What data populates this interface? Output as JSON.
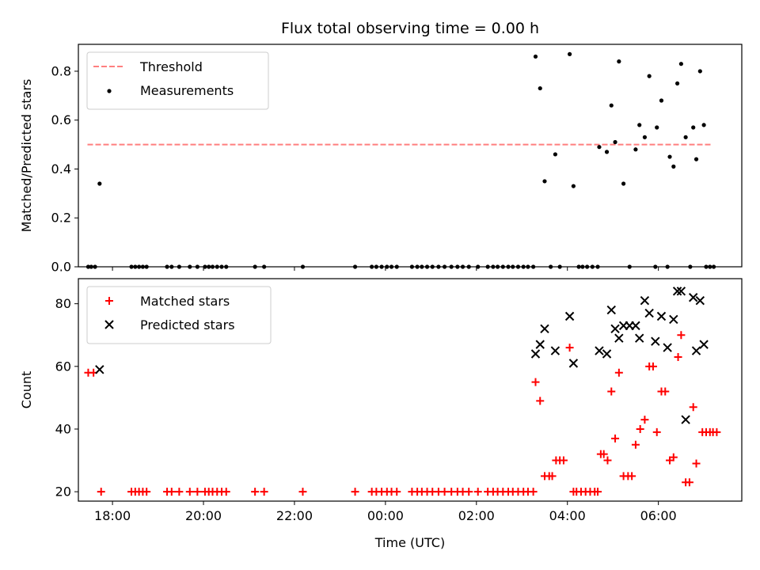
{
  "title": "Flux total observing time = 0.00 h",
  "chart_data": [
    {
      "type": "scatter",
      "ylabel": "Matched/Predicted stars",
      "xlabel": "",
      "xlim": [
        "17:15",
        "07:50"
      ],
      "ylim": [
        0,
        0.91
      ],
      "grid": false,
      "legend": "top-left",
      "yticks": [
        0.0,
        0.2,
        0.4,
        0.6,
        0.8
      ],
      "ytick_labels": [
        "0.0",
        "0.2",
        "0.4",
        "0.6",
        "0.8"
      ],
      "threshold": {
        "name": "Threshold",
        "value": 0.5,
        "x_range": [
          "17:27",
          "07:10"
        ],
        "color": "#ff7f7f",
        "style": "dashed"
      },
      "series": [
        {
          "name": "Measurements",
          "color": "#000000",
          "marker": "dot",
          "points": [
            [
              "17:28",
              0
            ],
            [
              "17:32",
              0
            ],
            [
              "17:37",
              0
            ],
            [
              "17:43",
              0.34
            ],
            [
              "18:25",
              0
            ],
            [
              "18:30",
              0
            ],
            [
              "18:35",
              0
            ],
            [
              "18:40",
              0
            ],
            [
              "18:45",
              0
            ],
            [
              "19:12",
              0
            ],
            [
              "19:18",
              0
            ],
            [
              "19:28",
              0
            ],
            [
              "19:42",
              0
            ],
            [
              "19:52",
              0
            ],
            [
              "20:02",
              0
            ],
            [
              "20:07",
              0
            ],
            [
              "20:12",
              0
            ],
            [
              "20:18",
              0
            ],
            [
              "20:24",
              0
            ],
            [
              "20:30",
              0
            ],
            [
              "21:08",
              0
            ],
            [
              "21:20",
              0
            ],
            [
              "22:11",
              0
            ],
            [
              "23:20",
              0
            ],
            [
              "23:42",
              0
            ],
            [
              "23:48",
              0
            ],
            [
              "23:55",
              0
            ],
            [
              "00:02",
              0
            ],
            [
              "00:08",
              0
            ],
            [
              "00:15",
              0
            ],
            [
              "00:35",
              0
            ],
            [
              "00:42",
              0
            ],
            [
              "00:48",
              0
            ],
            [
              "00:55",
              0
            ],
            [
              "01:02",
              0
            ],
            [
              "01:10",
              0
            ],
            [
              "01:18",
              0
            ],
            [
              "01:27",
              0
            ],
            [
              "01:35",
              0
            ],
            [
              "01:42",
              0
            ],
            [
              "01:50",
              0
            ],
            [
              "02:02",
              0
            ],
            [
              "02:15",
              0
            ],
            [
              "02:22",
              0
            ],
            [
              "02:28",
              0
            ],
            [
              "02:35",
              0
            ],
            [
              "02:42",
              0
            ],
            [
              "02:48",
              0
            ],
            [
              "02:55",
              0
            ],
            [
              "03:02",
              0
            ],
            [
              "03:08",
              0
            ],
            [
              "03:15",
              0
            ],
            [
              "03:18",
              0.86
            ],
            [
              "03:24",
              0.73
            ],
            [
              "03:30",
              0.35
            ],
            [
              "03:38",
              0
            ],
            [
              "03:44",
              0.46
            ],
            [
              "03:50",
              0
            ],
            [
              "04:03",
              0.87
            ],
            [
              "04:08",
              0.33
            ],
            [
              "04:15",
              0
            ],
            [
              "04:20",
              0
            ],
            [
              "04:26",
              0
            ],
            [
              "04:33",
              0
            ],
            [
              "04:40",
              0
            ],
            [
              "04:42",
              0.49
            ],
            [
              "04:52",
              0.47
            ],
            [
              "04:58",
              0.66
            ],
            [
              "05:03",
              0.51
            ],
            [
              "05:08",
              0.84
            ],
            [
              "05:14",
              0.34
            ],
            [
              "05:22",
              0
            ],
            [
              "05:30",
              0.48
            ],
            [
              "05:35",
              0.58
            ],
            [
              "05:42",
              0.53
            ],
            [
              "05:48",
              0.78
            ],
            [
              "05:56",
              0
            ],
            [
              "05:58",
              0.57
            ],
            [
              "06:04",
              0.68
            ],
            [
              "06:12",
              0
            ],
            [
              "06:15",
              0.45
            ],
            [
              "06:20",
              0.41
            ],
            [
              "06:25",
              0.75
            ],
            [
              "06:30",
              0.83
            ],
            [
              "06:36",
              0.53
            ],
            [
              "06:42",
              0
            ],
            [
              "06:46",
              0.57
            ],
            [
              "06:50",
              0.44
            ],
            [
              "06:55",
              0.8
            ],
            [
              "07:00",
              0.58
            ],
            [
              "07:03",
              0
            ],
            [
              "07:08",
              0
            ],
            [
              "07:13",
              0
            ]
          ]
        }
      ]
    },
    {
      "type": "scatter",
      "xlabel": "Time (UTC)",
      "ylabel": "Count",
      "xlim": [
        "17:15",
        "07:50"
      ],
      "ylim": [
        17,
        88
      ],
      "grid": false,
      "legend": "top-left",
      "yticks": [
        20,
        40,
        60,
        80
      ],
      "ytick_labels": [
        "20",
        "40",
        "60",
        "80"
      ],
      "xticks": [
        "18:00",
        "20:00",
        "22:00",
        "00:00",
        "02:00",
        "04:00",
        "06:00"
      ],
      "xtick_labels": [
        "18:00",
        "20:00",
        "22:00",
        "00:00",
        "02:00",
        "04:00",
        "06:00"
      ],
      "series": [
        {
          "name": "Matched stars",
          "color": "#ff0000",
          "marker": "plus",
          "points": [
            [
              "17:28",
              58
            ],
            [
              "17:35",
              58
            ],
            [
              "17:45",
              20
            ],
            [
              "18:25",
              20
            ],
            [
              "18:30",
              20
            ],
            [
              "18:35",
              20
            ],
            [
              "18:40",
              20
            ],
            [
              "18:45",
              20
            ],
            [
              "19:12",
              20
            ],
            [
              "19:18",
              20
            ],
            [
              "19:28",
              20
            ],
            [
              "19:42",
              20
            ],
            [
              "19:52",
              20
            ],
            [
              "20:02",
              20
            ],
            [
              "20:07",
              20
            ],
            [
              "20:12",
              20
            ],
            [
              "20:18",
              20
            ],
            [
              "20:24",
              20
            ],
            [
              "20:30",
              20
            ],
            [
              "21:08",
              20
            ],
            [
              "21:20",
              20
            ],
            [
              "22:11",
              20
            ],
            [
              "23:20",
              20
            ],
            [
              "23:42",
              20
            ],
            [
              "23:48",
              20
            ],
            [
              "23:55",
              20
            ],
            [
              "00:02",
              20
            ],
            [
              "00:08",
              20
            ],
            [
              "00:15",
              20
            ],
            [
              "00:35",
              20
            ],
            [
              "00:42",
              20
            ],
            [
              "00:48",
              20
            ],
            [
              "00:55",
              20
            ],
            [
              "01:02",
              20
            ],
            [
              "01:10",
              20
            ],
            [
              "01:18",
              20
            ],
            [
              "01:27",
              20
            ],
            [
              "01:35",
              20
            ],
            [
              "01:42",
              20
            ],
            [
              "01:50",
              20
            ],
            [
              "02:02",
              20
            ],
            [
              "02:15",
              20
            ],
            [
              "02:22",
              20
            ],
            [
              "02:28",
              20
            ],
            [
              "02:35",
              20
            ],
            [
              "02:42",
              20
            ],
            [
              "02:48",
              20
            ],
            [
              "02:55",
              20
            ],
            [
              "03:02",
              20
            ],
            [
              "03:08",
              20
            ],
            [
              "03:15",
              20
            ],
            [
              "03:18",
              55
            ],
            [
              "03:24",
              49
            ],
            [
              "03:30",
              25
            ],
            [
              "03:36",
              25
            ],
            [
              "03:40",
              25
            ],
            [
              "03:45",
              30
            ],
            [
              "03:50",
              30
            ],
            [
              "03:55",
              30
            ],
            [
              "04:03",
              66
            ],
            [
              "04:08",
              20
            ],
            [
              "04:12",
              20
            ],
            [
              "04:18",
              20
            ],
            [
              "04:24",
              20
            ],
            [
              "04:30",
              20
            ],
            [
              "04:36",
              20
            ],
            [
              "04:40",
              20
            ],
            [
              "04:44",
              32
            ],
            [
              "04:48",
              32
            ],
            [
              "04:53",
              30
            ],
            [
              "04:58",
              52
            ],
            [
              "05:03",
              37
            ],
            [
              "05:08",
              58
            ],
            [
              "05:14",
              25
            ],
            [
              "05:20",
              25
            ],
            [
              "05:25",
              25
            ],
            [
              "05:30",
              35
            ],
            [
              "05:36",
              40
            ],
            [
              "05:42",
              43
            ],
            [
              "05:48",
              60
            ],
            [
              "05:53",
              60
            ],
            [
              "05:58",
              39
            ],
            [
              "06:04",
              52
            ],
            [
              "06:09",
              52
            ],
            [
              "06:15",
              30
            ],
            [
              "06:20",
              31
            ],
            [
              "06:26",
              63
            ],
            [
              "06:30",
              70
            ],
            [
              "06:36",
              23
            ],
            [
              "06:41",
              23
            ],
            [
              "06:46",
              47
            ],
            [
              "06:50",
              29
            ],
            [
              "06:58",
              39
            ],
            [
              "07:03",
              39
            ],
            [
              "07:08",
              39
            ],
            [
              "07:12",
              39
            ],
            [
              "07:17",
              39
            ]
          ]
        },
        {
          "name": "Predicted stars",
          "color": "#000000",
          "marker": "x",
          "points": [
            [
              "17:43",
              59
            ],
            [
              "03:18",
              64
            ],
            [
              "03:24",
              67
            ],
            [
              "03:30",
              72
            ],
            [
              "03:44",
              65
            ],
            [
              "04:03",
              76
            ],
            [
              "04:08",
              61
            ],
            [
              "04:42",
              65
            ],
            [
              "04:52",
              64
            ],
            [
              "04:58",
              78
            ],
            [
              "05:03",
              72
            ],
            [
              "05:08",
              69
            ],
            [
              "05:14",
              73
            ],
            [
              "05:22",
              73
            ],
            [
              "05:30",
              73
            ],
            [
              "05:35",
              69
            ],
            [
              "05:42",
              81
            ],
            [
              "05:48",
              77
            ],
            [
              "05:56",
              68
            ],
            [
              "06:04",
              76
            ],
            [
              "06:12",
              66
            ],
            [
              "06:20",
              75
            ],
            [
              "06:25",
              84
            ],
            [
              "06:30",
              84
            ],
            [
              "06:36",
              43
            ],
            [
              "06:46",
              82
            ],
            [
              "06:50",
              65
            ],
            [
              "06:55",
              81
            ],
            [
              "07:00",
              67
            ]
          ]
        }
      ]
    }
  ]
}
